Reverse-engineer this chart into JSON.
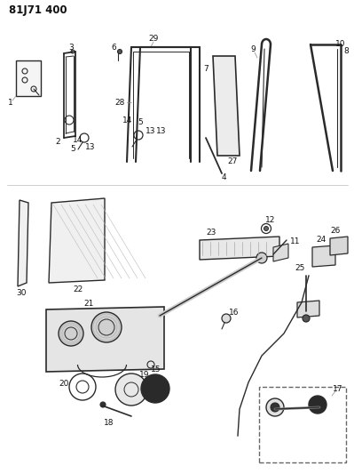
{
  "title": "81J71 400",
  "bg_color": "#ffffff",
  "line_color": "#2a2a2a",
  "label_color": "#111111",
  "fig_width": 3.99,
  "fig_height": 5.33,
  "dpi": 100
}
